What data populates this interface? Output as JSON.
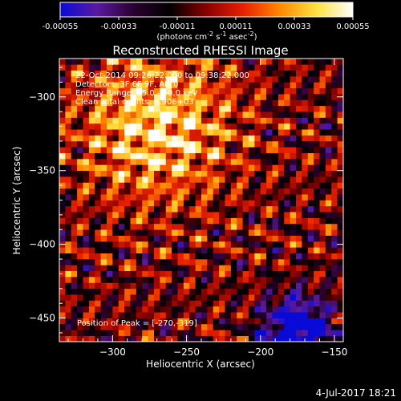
{
  "colorbar": {
    "tick_labels": [
      "-0.00055",
      "-0.00033",
      "-0.00011",
      "0.00011",
      "0.00033",
      "0.00055"
    ],
    "range": [
      -0.00055,
      0.00055
    ],
    "units_base": "(photons cm",
    "units_exp1": "-2",
    "units_mid": " s",
    "units_exp2": "-1",
    "units_mid2": " asec",
    "units_exp3": "-2",
    "units_end": ")",
    "colormap": [
      "#0a0ad8",
      "#5a1aa0",
      "#2a0030",
      "#000000",
      "#8a0000",
      "#e82000",
      "#ff8800",
      "#ffe040",
      "#ffffff"
    ]
  },
  "chart_data": {
    "type": "heatmap",
    "title": "Reconstructed RHESSI Image",
    "xlabel": "Heliocentric X (arcsec)",
    "ylabel": "Heliocentric Y (arcsec)",
    "xlim": [
      -336,
      -144
    ],
    "ylim": [
      -466,
      -274
    ],
    "xticks": [
      -300,
      -250,
      -200,
      -150
    ],
    "yticks": [
      -300,
      -350,
      -400,
      -450
    ],
    "xtick_labels": [
      "−300",
      "−250",
      "−200",
      "−150"
    ],
    "ytick_labels": [
      "−300",
      "−350",
      "−400",
      "−450"
    ],
    "annotations": [
      "22-Oct-2014 09:26:22.000 to 09:38:22.000",
      "Detectors: 3F 6F 9F, Att 0",
      "Energy Range: 25.0 - 50.0 keV",
      "Clean     Total counts: 6.90E+03"
    ],
    "peak_label": "Position of Peak = [-270,-319]",
    "peak": [
      -270,
      -319
    ]
  },
  "footer": {
    "date": "4-Jul-2017 18:21"
  }
}
